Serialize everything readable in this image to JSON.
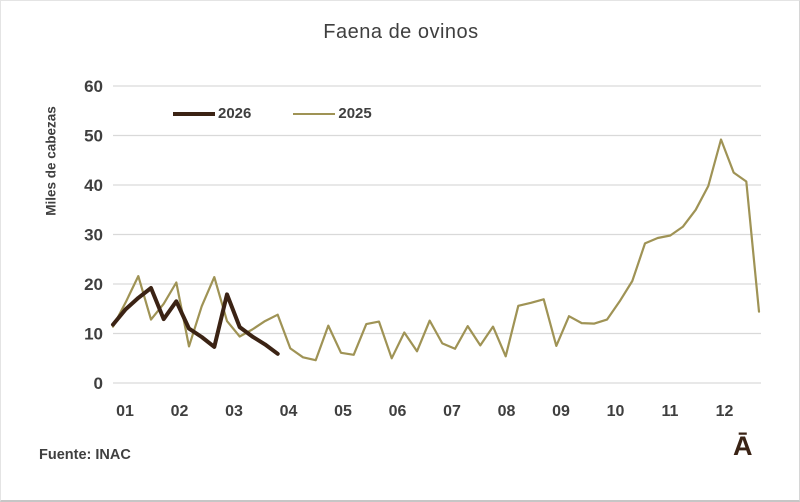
{
  "chart_data": {
    "type": "line",
    "title": "Faena de ovinos",
    "ylabel": "Miles de cabezas",
    "xlabel": "",
    "x_tick_labels": [
      "01",
      "02",
      "03",
      "04",
      "05",
      "06",
      "07",
      "08",
      "09",
      "10",
      "11",
      "12"
    ],
    "y_tick_labels": [
      "0",
      "10",
      "20",
      "30",
      "40",
      "50",
      "60"
    ],
    "ylim": [
      0,
      60
    ],
    "ytick_step": 10,
    "grid": "horizontal",
    "grid_color": "#d9d9d9",
    "legend_position": "top-left-inside",
    "x_description": "weekly points across months 01-12",
    "series": [
      {
        "name": "2025",
        "color": "#9f9355",
        "line_width": 2.2,
        "values": [
          11.4,
          16.3,
          21.6,
          12.8,
          16.0,
          20.3,
          7.4,
          15.5,
          21.4,
          12.5,
          9.4,
          10.8,
          12.5,
          13.8,
          7.0,
          5.2,
          4.6,
          11.6,
          6.1,
          5.7,
          11.9,
          12.4,
          5.0,
          10.2,
          6.4,
          12.6,
          8.0,
          6.9,
          11.5,
          7.6,
          11.4,
          5.4,
          15.6,
          16.2,
          16.9,
          7.5,
          13.5,
          12.1,
          12.0,
          12.8,
          16.5,
          20.6,
          28.2,
          29.3,
          29.8,
          31.6,
          35.0,
          39.8,
          49.2,
          42.5,
          40.7,
          14.4
        ]
      },
      {
        "name": "2026",
        "color": "#3b2314",
        "line_width": 4,
        "values": [
          11.8,
          14.9,
          17.2,
          19.2,
          12.9,
          16.5,
          11.0,
          9.3,
          7.3,
          17.9,
          11.3,
          9.4,
          7.8,
          5.9
        ]
      }
    ]
  },
  "legend": {
    "first_label": "2026",
    "second_label": "2025"
  },
  "footer": {
    "source": "Fuente: INAC",
    "logo_char": "Ā"
  }
}
